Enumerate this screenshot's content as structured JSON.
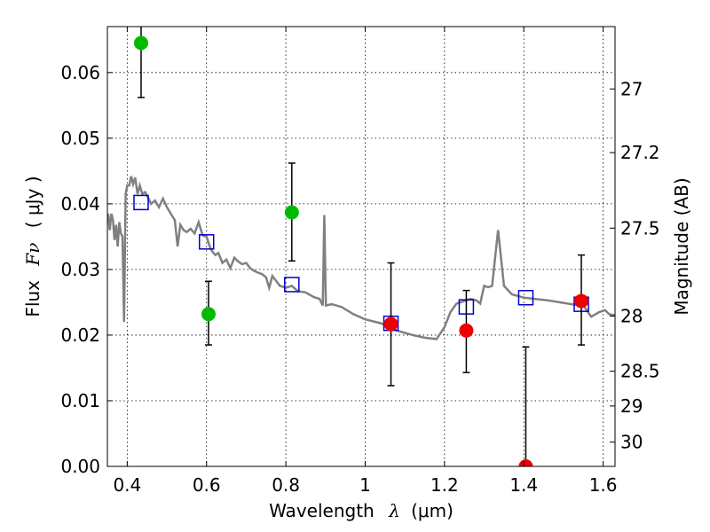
{
  "chart_data": {
    "type": "scatter",
    "title": "",
    "xlabel_text": "Wavelength",
    "xlabel_symbol": "λ",
    "xlabel_unit": "(μm)",
    "ylabel_text": "Flux",
    "ylabel_symbol": "Fν",
    "ylabel_unit": "( μJy )",
    "y2label": "Magnitude (AB)",
    "xlim": [
      0.35,
      1.63
    ],
    "ylim": [
      0.0,
      0.067
    ],
    "grid": true,
    "x_ticks": [
      {
        "v": 0.4,
        "label": "0.4"
      },
      {
        "v": 0.6,
        "label": "0.6"
      },
      {
        "v": 0.8,
        "label": "0.8"
      },
      {
        "v": 1.0,
        "label": "1"
      },
      {
        "v": 1.2,
        "label": "1.2"
      },
      {
        "v": 1.4,
        "label": "1.4"
      },
      {
        "v": 1.6,
        "label": "1.6"
      }
    ],
    "y_ticks": [
      {
        "v": 0.0,
        "label": "0.00"
      },
      {
        "v": 0.01,
        "label": "0.01"
      },
      {
        "v": 0.02,
        "label": "0.02"
      },
      {
        "v": 0.03,
        "label": "0.03"
      },
      {
        "v": 0.04,
        "label": "0.04"
      },
      {
        "v": 0.05,
        "label": "0.05"
      },
      {
        "v": 0.06,
        "label": "0.06"
      }
    ],
    "y2_ticks": [
      {
        "flux": 0.0575,
        "label": "27"
      },
      {
        "flux": 0.0478,
        "label": "27.2"
      },
      {
        "flux": 0.0363,
        "label": "27.5"
      },
      {
        "flux": 0.0229,
        "label": "28"
      },
      {
        "flux": 0.0145,
        "label": "28.5"
      },
      {
        "flux": 0.0092,
        "label": "29"
      },
      {
        "flux": 0.0037,
        "label": "30"
      }
    ],
    "model_sed": {
      "color": "#808080",
      "points": [
        [
          0.352,
          0.0385
        ],
        [
          0.356,
          0.036
        ],
        [
          0.36,
          0.0385
        ],
        [
          0.364,
          0.0375
        ],
        [
          0.368,
          0.0345
        ],
        [
          0.372,
          0.0368
        ],
        [
          0.376,
          0.0335
        ],
        [
          0.38,
          0.0372
        ],
        [
          0.384,
          0.0355
        ],
        [
          0.388,
          0.035
        ],
        [
          0.392,
          0.022
        ],
        [
          0.396,
          0.0415
        ],
        [
          0.4,
          0.0428
        ],
        [
          0.405,
          0.0428
        ],
        [
          0.41,
          0.0442
        ],
        [
          0.415,
          0.043
        ],
        [
          0.42,
          0.044
        ],
        [
          0.426,
          0.0415
        ],
        [
          0.432,
          0.0428
        ],
        [
          0.438,
          0.0415
        ],
        [
          0.445,
          0.0418
        ],
        [
          0.452,
          0.041
        ],
        [
          0.46,
          0.04
        ],
        [
          0.47,
          0.0405
        ],
        [
          0.48,
          0.0395
        ],
        [
          0.49,
          0.0408
        ],
        [
          0.5,
          0.0395
        ],
        [
          0.51,
          0.0385
        ],
        [
          0.52,
          0.0375
        ],
        [
          0.527,
          0.0335
        ],
        [
          0.534,
          0.0368
        ],
        [
          0.542,
          0.036
        ],
        [
          0.55,
          0.0357
        ],
        [
          0.56,
          0.0362
        ],
        [
          0.57,
          0.0355
        ],
        [
          0.58,
          0.0372
        ],
        [
          0.59,
          0.0352
        ],
        [
          0.6,
          0.035
        ],
        [
          0.608,
          0.0335
        ],
        [
          0.615,
          0.0327
        ],
        [
          0.622,
          0.0322
        ],
        [
          0.63,
          0.0325
        ],
        [
          0.64,
          0.031
        ],
        [
          0.65,
          0.0315
        ],
        [
          0.66,
          0.0302
        ],
        [
          0.67,
          0.0318
        ],
        [
          0.68,
          0.0312
        ],
        [
          0.69,
          0.0308
        ],
        [
          0.7,
          0.031
        ],
        [
          0.71,
          0.0302
        ],
        [
          0.72,
          0.0298
        ],
        [
          0.73,
          0.0295
        ],
        [
          0.74,
          0.0293
        ],
        [
          0.75,
          0.0288
        ],
        [
          0.758,
          0.0272
        ],
        [
          0.766,
          0.029
        ],
        [
          0.775,
          0.0283
        ],
        [
          0.785,
          0.0275
        ],
        [
          0.8,
          0.0272
        ],
        [
          0.815,
          0.0275
        ],
        [
          0.83,
          0.0267
        ],
        [
          0.85,
          0.0265
        ],
        [
          0.87,
          0.0258
        ],
        [
          0.885,
          0.0255
        ],
        [
          0.893,
          0.0245
        ],
        [
          0.897,
          0.0383
        ],
        [
          0.901,
          0.0245
        ],
        [
          0.915,
          0.0247
        ],
        [
          0.94,
          0.0243
        ],
        [
          0.97,
          0.0232
        ],
        [
          1.0,
          0.0224
        ],
        [
          1.04,
          0.0218
        ],
        [
          1.08,
          0.0207
        ],
        [
          1.12,
          0.02
        ],
        [
          1.15,
          0.0196
        ],
        [
          1.18,
          0.0194
        ],
        [
          1.2,
          0.0212
        ],
        [
          1.215,
          0.0235
        ],
        [
          1.23,
          0.0248
        ],
        [
          1.25,
          0.0252
        ],
        [
          1.265,
          0.0255
        ],
        [
          1.28,
          0.0253
        ],
        [
          1.29,
          0.0248
        ],
        [
          1.3,
          0.0275
        ],
        [
          1.31,
          0.0273
        ],
        [
          1.32,
          0.0275
        ],
        [
          1.335,
          0.036
        ],
        [
          1.35,
          0.0275
        ],
        [
          1.37,
          0.0262
        ],
        [
          1.4,
          0.0257
        ],
        [
          1.43,
          0.0255
        ],
        [
          1.46,
          0.0253
        ],
        [
          1.49,
          0.025
        ],
        [
          1.52,
          0.0247
        ],
        [
          1.55,
          0.0245
        ],
        [
          1.57,
          0.0228
        ],
        [
          1.59,
          0.0235
        ],
        [
          1.605,
          0.0238
        ],
        [
          1.615,
          0.0232
        ],
        [
          1.63,
          0.023
        ]
      ]
    },
    "model_photometry": {
      "color": "#0000cc",
      "points": [
        [
          0.435,
          0.0402
        ],
        [
          0.6,
          0.0342
        ],
        [
          0.815,
          0.0277
        ],
        [
          1.065,
          0.0218
        ],
        [
          1.255,
          0.0243
        ],
        [
          1.405,
          0.0257
        ],
        [
          1.545,
          0.0247
        ]
      ]
    },
    "observed_photometry": [
      {
        "x": 0.435,
        "y": 0.0645,
        "err_low": 0.0562,
        "err_high": 0.0675,
        "color": "#00bb00"
      },
      {
        "x": 0.605,
        "y": 0.0232,
        "err_low": 0.0185,
        "err_high": 0.0282,
        "color": "#00bb00"
      },
      {
        "x": 0.815,
        "y": 0.0387,
        "err_low": 0.0313,
        "err_high": 0.0462,
        "color": "#00bb00"
      },
      {
        "x": 1.065,
        "y": 0.0217,
        "err_low": 0.0123,
        "err_high": 0.031,
        "color": "#ee0000"
      },
      {
        "x": 1.255,
        "y": 0.0207,
        "err_low": 0.0143,
        "err_high": 0.0268,
        "color": "#ee0000"
      },
      {
        "x": 1.405,
        "y": 0.0,
        "err_low": 0.0,
        "err_high": 0.0182,
        "color": "#ee0000"
      },
      {
        "x": 1.545,
        "y": 0.0252,
        "err_low": 0.0185,
        "err_high": 0.0322,
        "color": "#ee0000"
      }
    ]
  }
}
